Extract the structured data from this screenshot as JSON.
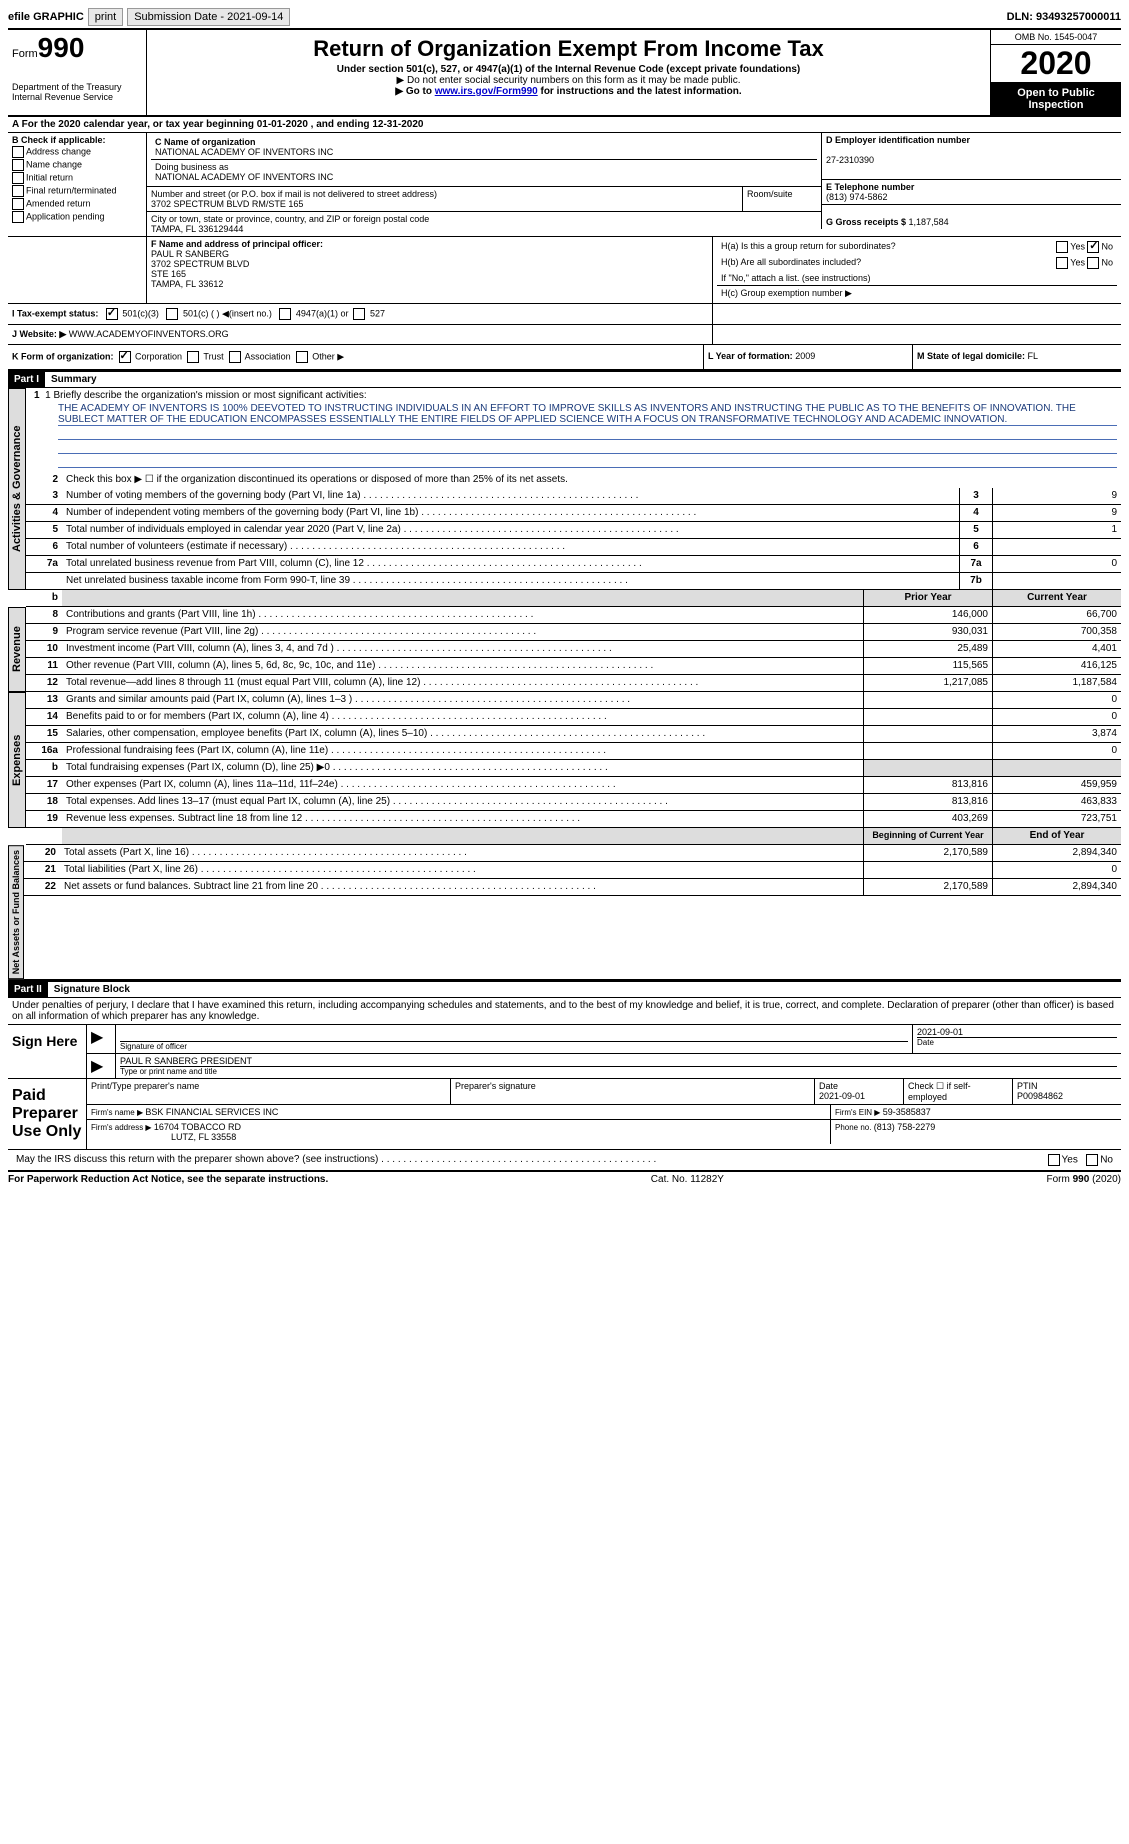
{
  "topbar": {
    "efile": "efile GRAPHIC",
    "print": "print",
    "submission_label": "Submission Date - ",
    "submission_date": "2021-09-14",
    "dln_label": "DLN: ",
    "dln": "93493257000011"
  },
  "header": {
    "form_label": "Form",
    "form_number": "990",
    "dept": "Department of the Treasury",
    "irs": "Internal Revenue Service",
    "title": "Return of Organization Exempt From Income Tax",
    "subtitle": "Under section 501(c), 527, or 4947(a)(1) of the Internal Revenue Code (except private foundations)",
    "note1": "▶ Do not enter social security numbers on this form as it may be made public.",
    "note2_pre": "▶ Go to ",
    "note2_link": "www.irs.gov/Form990",
    "note2_post": " for instructions and the latest information.",
    "omb": "OMB No. 1545-0047",
    "year": "2020",
    "open": "Open to Public Inspection"
  },
  "rowA": {
    "text": "A For the 2020 calendar year, or tax year beginning 01-01-2020    , and ending 12-31-2020"
  },
  "colB": {
    "title": "B Check if applicable:",
    "items": [
      "Address change",
      "Name change",
      "Initial return",
      "Final return/terminated",
      "Amended return",
      "Application pending"
    ]
  },
  "colC": {
    "name_label": "C Name of organization",
    "name": "NATIONAL ACADEMY OF INVENTORS INC",
    "dba_label": "Doing business as",
    "dba": "NATIONAL ACADEMY OF INVENTORS INC",
    "addr_label": "Number and street (or P.O. box if mail is not delivered to street address)",
    "room_label": "Room/suite",
    "addr": "3702 SPECTRUM BLVD RM/STE 165",
    "city_label": "City or town, state or province, country, and ZIP or foreign postal code",
    "city": "TAMPA, FL  336129444"
  },
  "colD": {
    "label": "D Employer identification number",
    "ein": "27-2310390",
    "e_label": "E Telephone number",
    "phone": "(813) 974-5862",
    "g_label": "G Gross receipts $ ",
    "gross": "1,187,584"
  },
  "rowF": {
    "label": "F  Name and address of principal officer:",
    "name": "PAUL R SANBERG",
    "addr1": "3702 SPECTRUM BLVD",
    "addr2": "STE 165",
    "addr3": "TAMPA, FL  33612"
  },
  "rowH": {
    "ha": "H(a)  Is this a group return for subordinates?",
    "hb": "H(b)  Are all subordinates included?",
    "hb_note": "If \"No,\" attach a list. (see instructions)",
    "hc": "H(c)  Group exemption number ▶",
    "yes": "Yes",
    "no": "No"
  },
  "rowI": {
    "label": "I   Tax-exempt status:",
    "c3": "501(c)(3)",
    "c_other": "501(c) (  ) ◀(insert no.)",
    "a1": "4947(a)(1) or",
    "527": "527"
  },
  "rowJ": {
    "label": "J   Website: ▶ ",
    "url": "WWW.ACADEMYOFINVENTORS.ORG"
  },
  "rowK": {
    "label": "K Form of organization:",
    "corp": "Corporation",
    "trust": "Trust",
    "assoc": "Association",
    "other": "Other ▶"
  },
  "rowL": {
    "label": "L Year of formation: ",
    "year": "2009"
  },
  "rowM": {
    "label": "M State of legal domicile: ",
    "state": "FL"
  },
  "part1": {
    "header": "Part I",
    "title": "Summary",
    "mission_label": "1  Briefly describe the organization's mission or most significant activities:",
    "mission": "THE ACADEMY OF INVENTORS IS 100% DEEVOTED TO INSTRUCTING INDIVIDUALS IN AN EFFORT TO IMPROVE SKILLS AS INVENTORS AND INSTRUCTING THE PUBLIC AS TO THE BENEFITS OF INNOVATION. THE SUBLECT MATTER OF THE EDUCATION ENCOMPASSES ESSENTIALLY THE ENTIRE FIELDS OF APPLIED SCIENCE WITH A FOCUS ON TRANSFORMATIVE TECHNOLOGY AND ACADEMIC INNOVATION.",
    "line2": "Check this box ▶ ☐ if the organization discontinued its operations or disposed of more than 25% of its net assets.",
    "tabs": {
      "gov": "Activities & Governance",
      "rev": "Revenue",
      "exp": "Expenses",
      "net": "Net Assets or Fund Balances"
    },
    "lines_single": [
      {
        "n": "3",
        "d": "Number of voting members of the governing body (Part VI, line 1a)",
        "k": "3",
        "v": "9"
      },
      {
        "n": "4",
        "d": "Number of independent voting members of the governing body (Part VI, line 1b)",
        "k": "4",
        "v": "9"
      },
      {
        "n": "5",
        "d": "Total number of individuals employed in calendar year 2020 (Part V, line 2a)",
        "k": "5",
        "v": "1"
      },
      {
        "n": "6",
        "d": "Total number of volunteers (estimate if necessary)",
        "k": "6",
        "v": ""
      },
      {
        "n": "7a",
        "d": "Total unrelated business revenue from Part VIII, column (C), line 12",
        "k": "7a",
        "v": "0"
      },
      {
        "n": "",
        "d": "Net unrelated business taxable income from Form 990-T, line 39",
        "k": "7b",
        "v": ""
      }
    ],
    "col_headers": {
      "b": "b",
      "prior": "Prior Year",
      "current": "Current Year"
    },
    "lines_rev": [
      {
        "n": "8",
        "d": "Contributions and grants (Part VIII, line 1h)",
        "p": "146,000",
        "c": "66,700"
      },
      {
        "n": "9",
        "d": "Program service revenue (Part VIII, line 2g)",
        "p": "930,031",
        "c": "700,358"
      },
      {
        "n": "10",
        "d": "Investment income (Part VIII, column (A), lines 3, 4, and 7d )",
        "p": "25,489",
        "c": "4,401"
      },
      {
        "n": "11",
        "d": "Other revenue (Part VIII, column (A), lines 5, 6d, 8c, 9c, 10c, and 11e)",
        "p": "115,565",
        "c": "416,125"
      },
      {
        "n": "12",
        "d": "Total revenue—add lines 8 through 11 (must equal Part VIII, column (A), line 12)",
        "p": "1,217,085",
        "c": "1,187,584"
      }
    ],
    "lines_exp": [
      {
        "n": "13",
        "d": "Grants and similar amounts paid (Part IX, column (A), lines 1–3 )",
        "p": "",
        "c": "0"
      },
      {
        "n": "14",
        "d": "Benefits paid to or for members (Part IX, column (A), line 4)",
        "p": "",
        "c": "0"
      },
      {
        "n": "15",
        "d": "Salaries, other compensation, employee benefits (Part IX, column (A), lines 5–10)",
        "p": "",
        "c": "3,874"
      },
      {
        "n": "16a",
        "d": "Professional fundraising fees (Part IX, column (A), line 11e)",
        "p": "",
        "c": "0"
      },
      {
        "n": "b",
        "d": "Total fundraising expenses (Part IX, column (D), line 25) ▶0",
        "p": "GREY",
        "c": "GREY"
      },
      {
        "n": "17",
        "d": "Other expenses (Part IX, column (A), lines 11a–11d, 11f–24e)",
        "p": "813,816",
        "c": "459,959"
      },
      {
        "n": "18",
        "d": "Total expenses. Add lines 13–17 (must equal Part IX, column (A), line 25)",
        "p": "813,816",
        "c": "463,833"
      },
      {
        "n": "19",
        "d": "Revenue less expenses. Subtract line 18 from line 12",
        "p": "403,269",
        "c": "723,751"
      }
    ],
    "net_headers": {
      "begin": "Beginning of Current Year",
      "end": "End of Year"
    },
    "lines_net": [
      {
        "n": "20",
        "d": "Total assets (Part X, line 16)",
        "p": "2,170,589",
        "c": "2,894,340"
      },
      {
        "n": "21",
        "d": "Total liabilities (Part X, line 26)",
        "p": "",
        "c": "0"
      },
      {
        "n": "22",
        "d": "Net assets or fund balances. Subtract line 21 from line 20",
        "p": "2,170,589",
        "c": "2,894,340"
      }
    ]
  },
  "part2": {
    "header": "Part II",
    "title": "Signature Block",
    "decl": "Under penalties of perjury, I declare that I have examined this return, including accompanying schedules and statements, and to the best of my knowledge and belief, it is true, correct, and complete. Declaration of preparer (other than officer) is based on all information of which preparer has any knowledge."
  },
  "sign": {
    "here": "Sign Here",
    "sig_label": "Signature of officer",
    "date": "2021-09-01",
    "date_label": "Date",
    "name": "PAUL R SANBERG  PRESIDENT",
    "name_label": "Type or print name and title"
  },
  "paid": {
    "here": "Paid Preparer Use Only",
    "print_label": "Print/Type preparer's name",
    "sig_label": "Preparer's signature",
    "date_label": "Date",
    "date": "2021-09-01",
    "check_label": "Check ☐ if self-employed",
    "ptin_label": "PTIN",
    "ptin": "P00984862",
    "firm_name_label": "Firm's name    ▶ ",
    "firm_name": "BSK FINANCIAL SERVICES INC",
    "firm_ein_label": "Firm's EIN ▶ ",
    "firm_ein": "59-3585837",
    "firm_addr_label": "Firm's address ▶ ",
    "firm_addr1": "16704 TOBACCO RD",
    "firm_addr2": "LUTZ, FL  33558",
    "phone_label": "Phone no. ",
    "phone": "(813) 758-2279"
  },
  "bottom": {
    "discuss": "May the IRS discuss this return with the preparer shown above? (see instructions)",
    "yes": "Yes",
    "no": "No",
    "paperwork": "For Paperwork Reduction Act Notice, see the separate instructions.",
    "cat": "Cat. No. 11282Y",
    "form": "Form 990 (2020)"
  }
}
